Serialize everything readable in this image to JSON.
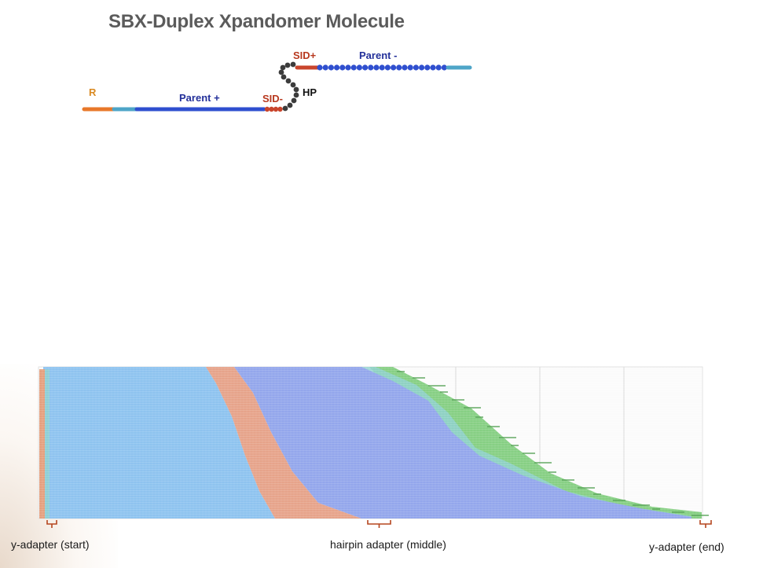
{
  "title": "SBX-Duplex Xpandomer Molecule",
  "molecule": {
    "labels": {
      "r": "R",
      "parent_plus": "Parent +",
      "sid_minus": "SID-",
      "hp": "HP",
      "sid_plus": "SID+",
      "parent_minus": "Parent -"
    },
    "colors": {
      "r_orange": "#e8782a",
      "r_label": "#d98a22",
      "teal": "#4ea5c8",
      "blue": "#2f4fcf",
      "red": "#c9452c",
      "sid_label": "#b8391f",
      "navy_label": "#23309a",
      "hairpin": "#3c3c3c"
    }
  },
  "alignment": {
    "colors": {
      "light_blue": "#8ec3ef",
      "salmon": "#e6a38a",
      "periwinkle": "#93a6ec",
      "green": "#86cf83",
      "teal": "#8fd1cf",
      "start_stripe": "#e5a07e",
      "bracket": "#b5461f"
    },
    "region_labels": {
      "start": "y-adapter (start)",
      "middle": "hairpin adapter (middle)",
      "end": "y-adapter (end)"
    }
  }
}
